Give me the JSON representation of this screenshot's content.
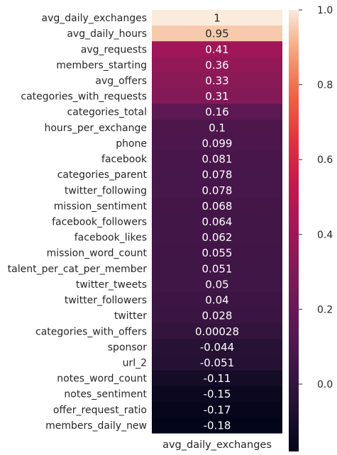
{
  "chart_data": {
    "type": "heatmap",
    "rows": [
      "avg_daily_exchanges",
      "avg_daily_hours",
      "avg_requests",
      "members_starting",
      "avg_offers",
      "categories_with_requests",
      "categories_total",
      "hours_per_exchange",
      "phone",
      "facebook",
      "categories_parent",
      "twitter_following",
      "mission_sentiment",
      "facebook_followers",
      "facebook_likes",
      "mission_word_count",
      "talent_per_cat_per_member",
      "twitter_tweets",
      "twitter_followers",
      "twitter",
      "categories_with_offers",
      "sponsor",
      "url_2",
      "notes_word_count",
      "notes_sentiment",
      "offer_request_ratio",
      "members_daily_new"
    ],
    "columns": [
      "avg_daily_exchanges"
    ],
    "values": [
      1,
      0.95,
      0.41,
      0.36,
      0.33,
      0.31,
      0.16,
      0.1,
      0.099,
      0.081,
      0.078,
      0.078,
      0.068,
      0.064,
      0.062,
      0.055,
      0.051,
      0.05,
      0.04,
      0.028,
      0.00028,
      -0.044,
      -0.051,
      -0.11,
      -0.15,
      -0.17,
      -0.18
    ],
    "annotations": [
      "1",
      "0.95",
      "0.41",
      "0.36",
      "0.33",
      "0.31",
      "0.16",
      "0.1",
      "0.099",
      "0.081",
      "0.078",
      "0.078",
      "0.068",
      "0.064",
      "0.062",
      "0.055",
      "0.051",
      "0.05",
      "0.04",
      "0.028",
      "0.00028",
      "-0.044",
      "-0.051",
      "-0.11",
      "-0.15",
      "-0.17",
      "-0.18"
    ],
    "xlabel": "avg_daily_exchanges",
    "colormap": "rocket",
    "vmin": -0.18,
    "vmax": 1,
    "colorbar_ticks": [
      0.0,
      0.2,
      0.4,
      0.6,
      0.8,
      1.0
    ],
    "colorbar_tick_labels": [
      "0.0",
      "0.2",
      "0.4",
      "0.6",
      "0.8",
      "1.0"
    ]
  }
}
